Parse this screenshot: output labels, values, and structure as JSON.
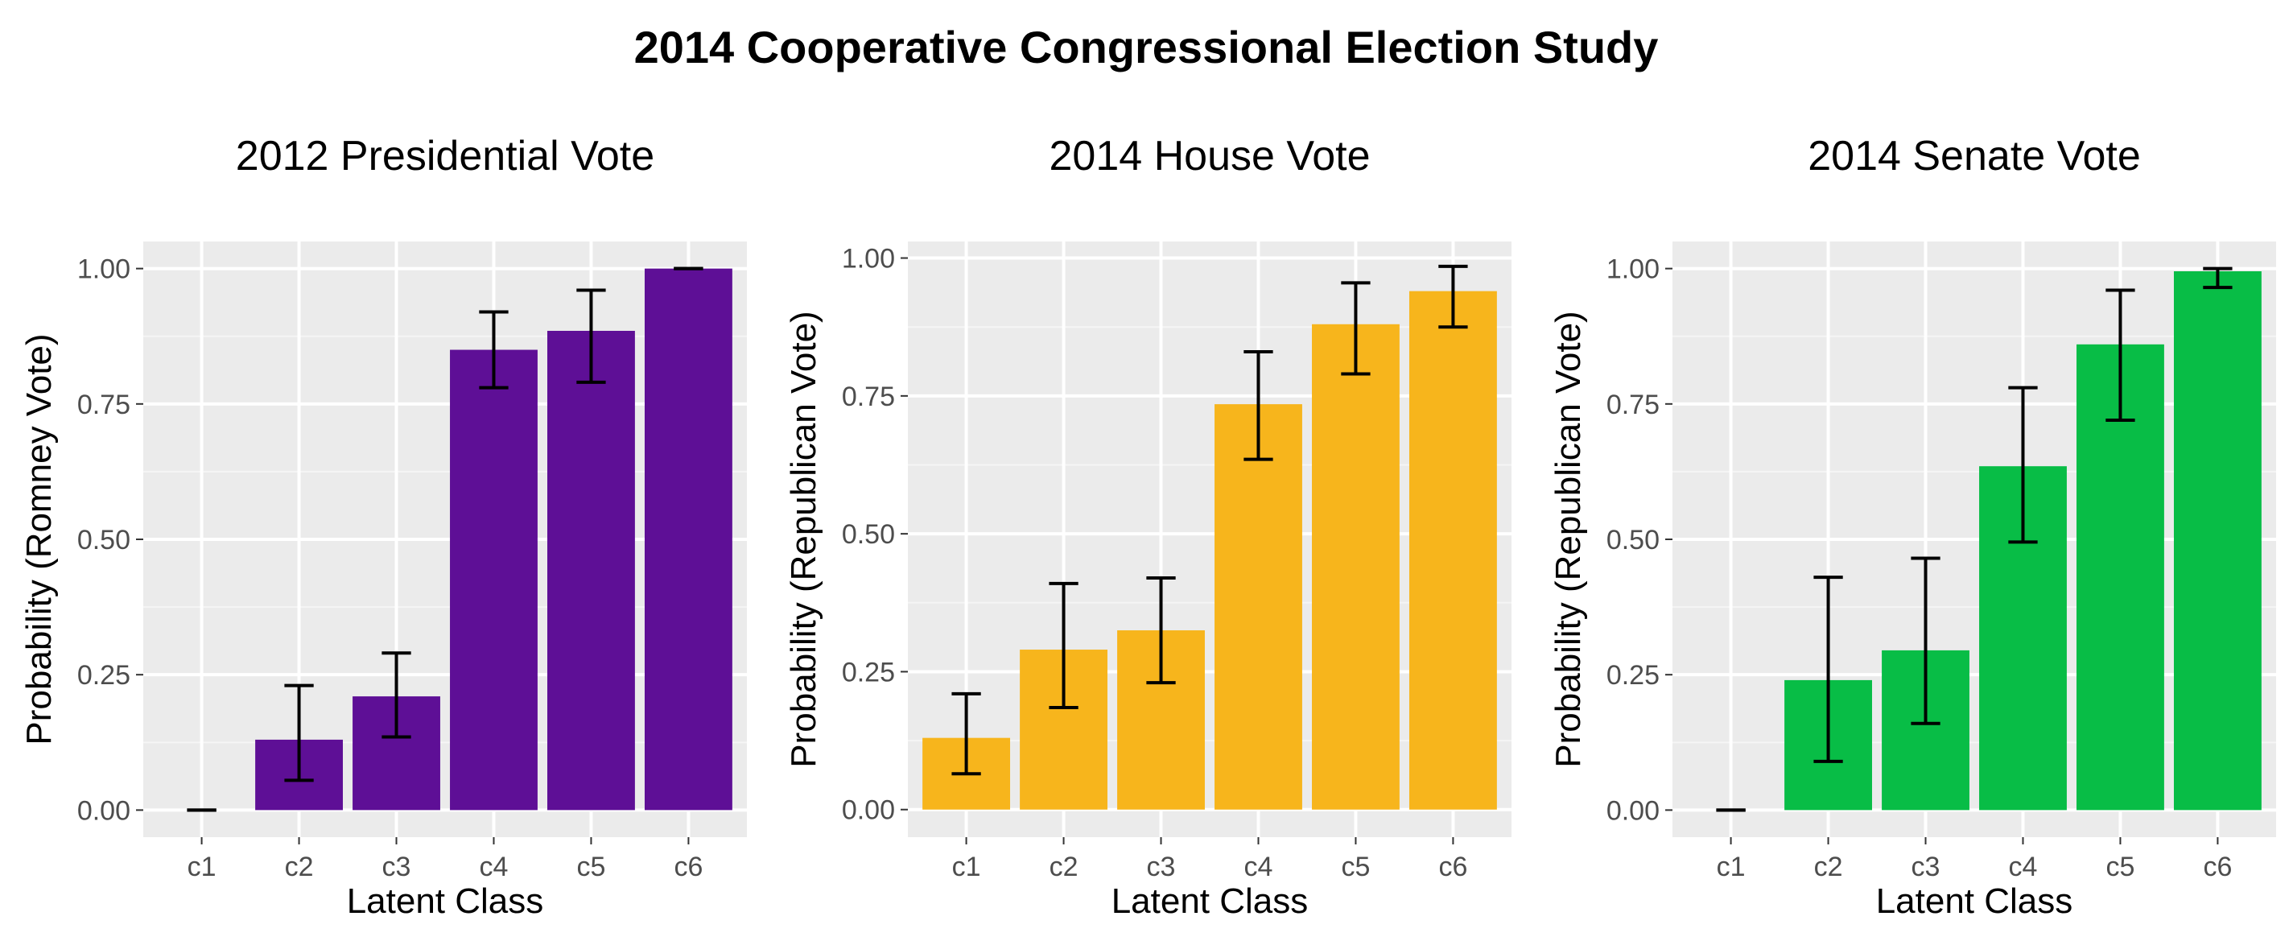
{
  "figure": {
    "title": "2014 Cooperative Congressional Election Study"
  },
  "chart_data": [
    {
      "type": "bar",
      "title": "2012 Presidential Vote",
      "xlabel": "Latent Class",
      "ylabel": "Probability (Romney Vote)",
      "categories": [
        "c1",
        "c2",
        "c3",
        "c4",
        "c5",
        "c6"
      ],
      "values": [
        0.0,
        0.13,
        0.21,
        0.85,
        0.885,
        1.0
      ],
      "error_low": [
        0.0,
        0.055,
        0.135,
        0.78,
        0.79,
        1.0
      ],
      "error_high": [
        0.0,
        0.23,
        0.29,
        0.92,
        0.96,
        1.0
      ],
      "ylim": [
        -0.05,
        1.05
      ],
      "yticks": [
        "0.00",
        "0.25",
        "0.50",
        "0.75",
        "1.00"
      ],
      "bar_color": "#5e0f96",
      "grid": true
    },
    {
      "type": "bar",
      "title": "2014 House Vote",
      "xlabel": "Latent Class",
      "ylabel": "Probability (Republican Vote)",
      "categories": [
        "c1",
        "c2",
        "c3",
        "c4",
        "c5",
        "c6"
      ],
      "values": [
        0.13,
        0.29,
        0.325,
        0.735,
        0.88,
        0.94
      ],
      "error_low": [
        0.065,
        0.185,
        0.23,
        0.635,
        0.79,
        0.875
      ],
      "error_high": [
        0.21,
        0.41,
        0.42,
        0.83,
        0.955,
        0.985
      ],
      "ylim": [
        -0.05,
        1.03
      ],
      "yticks": [
        "0.00",
        "0.25",
        "0.50",
        "0.75",
        "1.00"
      ],
      "bar_color": "#f7b51c",
      "grid": true
    },
    {
      "type": "bar",
      "title": "2014 Senate Vote",
      "xlabel": "Latent Class",
      "ylabel": "Probability (Republican Vote)",
      "categories": [
        "c1",
        "c2",
        "c3",
        "c4",
        "c5",
        "c6"
      ],
      "values": [
        0.0,
        0.24,
        0.295,
        0.635,
        0.86,
        0.995
      ],
      "error_low": [
        0.0,
        0.09,
        0.16,
        0.495,
        0.72,
        0.965
      ],
      "error_high": [
        0.0,
        0.43,
        0.465,
        0.78,
        0.96,
        1.0
      ],
      "ylim": [
        -0.05,
        1.05
      ],
      "yticks": [
        "0.00",
        "0.25",
        "0.50",
        "0.75",
        "1.00"
      ],
      "bar_color": "#08bd46",
      "grid": true
    }
  ]
}
